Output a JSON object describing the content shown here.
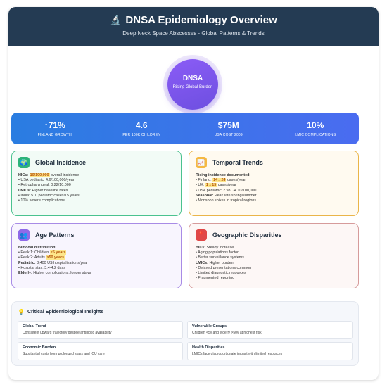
{
  "header": {
    "title": "DNSA Epidemiology Overview",
    "subtitle": "Deep Neck Space Abscesses - Global Patterns & Trends",
    "icon": "microscope-icon"
  },
  "hero": {
    "title": "DNSA",
    "subtitle": "Rising Global Burden"
  },
  "stats": [
    {
      "value": "↑71%",
      "label": "FINLAND GROWTH"
    },
    {
      "value": "4.6",
      "label": "PER 100K CHILDREN"
    },
    {
      "value": "$75M",
      "label": "USA COST 2009"
    },
    {
      "value": "10%",
      "label": "LMIC COMPLICATIONS"
    }
  ],
  "global_incidence": {
    "title": "Global Incidence",
    "icon": "globe-icon",
    "hics_label": "HICs:",
    "hics_value": "10/100,000",
    "hics_rest": "overall incidence",
    "line1": "• USA pediatric: 4.6/100,000/year",
    "line2": "• Retropharyngeal: 0.22/10,000",
    "lmics_label": "LMICs:",
    "lmics_rest": "Higher baseline rates",
    "line3": "• India: 510 pediatric cases/15 years",
    "line4": "• 10% severe complications"
  },
  "temporal_trends": {
    "title": "Temporal Trends",
    "icon": "chart-icon",
    "heading": "Rising incidence documented:",
    "finland_pre": "• Finland:",
    "finland_value": "14→24",
    "finland_post": "cases/year",
    "uk_pre": "• UK:",
    "uk_value": "1→15",
    "uk_post": "cases/year",
    "line_usa": "• USA pediatric: 2.98→4.10/100,000",
    "seasonal_label": "Seasonal:",
    "seasonal_rest": "Peak late spring/summer",
    "line_monsoon": "• Monsoon spikes in tropical regions"
  },
  "age_patterns": {
    "title": "Age Patterns",
    "icon": "people-icon",
    "heading": "Bimodal distribution:",
    "peak1_pre": "• Peak 1: Children",
    "peak1_value": "<5 years",
    "peak2_pre": "• Peak 2: Adults",
    "peak2_value": ">50 years",
    "pediatric_label": "Pediatric:",
    "pediatric_rest": "3,400 US hospitalizations/year",
    "line_stay": "• Hospital stay: 3.4-4.2 days",
    "elderly_label": "Elderly:",
    "elderly_rest": "Higher complications, longer stays"
  },
  "geographic": {
    "title": "Geographic Disparities",
    "icon": "pin-icon",
    "hics_label": "HICs:",
    "hics_rest": "Steady increase",
    "line1": "• Aging populations factor",
    "line2": "• Better surveillance systems",
    "lmics_label": "LMICs:",
    "lmics_rest": "Higher burden",
    "line3": "• Delayed presentations common",
    "line4": "• Limited diagnostic resources",
    "line5": "• Fragmented reporting"
  },
  "insights": {
    "title": "Critical Epidemiological Insights",
    "icon": "lightbulb-icon",
    "items": [
      {
        "title": "Global Trend",
        "text": "Consistent upward trajectory despite antibiotic availability"
      },
      {
        "title": "Vulnerable Groups",
        "text": "Children <5y and elderly >50y at highest risk"
      },
      {
        "title": "Economic Burden",
        "text": "Substantial costs from prolonged stays and ICU care"
      },
      {
        "title": "Health Disparities",
        "text": "LMICs face disproportionate impact with limited resources"
      }
    ]
  },
  "colors": {
    "header": "#243b53",
    "hero": "#8b5cf6",
    "stats_bar": "#2a7de1",
    "green": "#4bc28f",
    "amber": "#eab54a",
    "purple": "#a88be6",
    "red": "#d69b9b"
  }
}
